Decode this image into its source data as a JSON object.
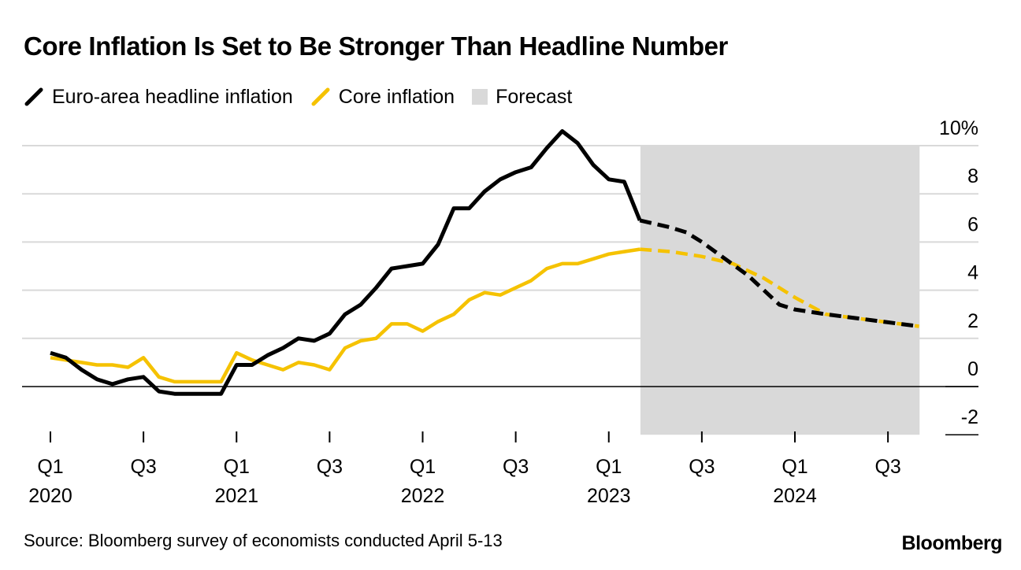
{
  "title": "Core Inflation Is Set to Be Stronger Than Headline Number",
  "legend": {
    "headline": "Euro-area headline inflation",
    "core": "Core inflation",
    "forecast": "Forecast"
  },
  "source": "Source: Bloomberg survey of economists conducted April 5-13",
  "brand": "Bloomberg",
  "colors": {
    "headline": "#000000",
    "core": "#f5c200",
    "forecast": "#d9d9d9",
    "grid": "#d9d9d9"
  },
  "chart_data": {
    "type": "line",
    "title": "Core Inflation Is Set to Be Stronger Than Headline Number",
    "xlabel": "",
    "ylabel": "",
    "ylim": [
      -2,
      10
    ],
    "xlim": [
      2020.0,
      2024.83
    ],
    "x_unit": "year",
    "y_ticks": [
      {
        "value": 10,
        "label": "10%"
      },
      {
        "value": 8,
        "label": "8"
      },
      {
        "value": 6,
        "label": "6"
      },
      {
        "value": 4,
        "label": "4"
      },
      {
        "value": 2,
        "label": "2"
      },
      {
        "value": 0,
        "label": "0"
      },
      {
        "value": -2,
        "label": "-2"
      }
    ],
    "x_ticks": [
      {
        "value": 2020.0,
        "label": "Q1",
        "sublabel": "2020"
      },
      {
        "value": 2020.5,
        "label": "Q3",
        "sublabel": ""
      },
      {
        "value": 2021.0,
        "label": "Q1",
        "sublabel": "2021"
      },
      {
        "value": 2021.5,
        "label": "Q3",
        "sublabel": ""
      },
      {
        "value": 2022.0,
        "label": "Q1",
        "sublabel": "2022"
      },
      {
        "value": 2022.5,
        "label": "Q3",
        "sublabel": ""
      },
      {
        "value": 2023.0,
        "label": "Q1",
        "sublabel": "2023"
      },
      {
        "value": 2023.5,
        "label": "Q3",
        "sublabel": ""
      },
      {
        "value": 2024.0,
        "label": "Q1",
        "sublabel": "2024"
      },
      {
        "value": 2024.5,
        "label": "Q3",
        "sublabel": ""
      }
    ],
    "forecast_range": [
      2023.17,
      2024.67
    ],
    "series": [
      {
        "name": "Euro-area headline inflation",
        "color": "#000000",
        "x": [
          2020.0,
          2020.083,
          2020.167,
          2020.25,
          2020.333,
          2020.417,
          2020.5,
          2020.583,
          2020.667,
          2020.75,
          2020.833,
          2020.917,
          2021.0,
          2021.083,
          2021.167,
          2021.25,
          2021.333,
          2021.417,
          2021.5,
          2021.583,
          2021.667,
          2021.75,
          2021.833,
          2021.917,
          2022.0,
          2022.083,
          2022.167,
          2022.25,
          2022.333,
          2022.417,
          2022.5,
          2022.583,
          2022.667,
          2022.75,
          2022.833,
          2022.917,
          2023.0,
          2023.083,
          2023.167
        ],
        "values": [
          1.4,
          1.2,
          0.7,
          0.3,
          0.1,
          0.3,
          0.4,
          -0.2,
          -0.3,
          -0.3,
          -0.3,
          -0.3,
          0.9,
          0.9,
          1.3,
          1.6,
          2.0,
          1.9,
          2.2,
          3.0,
          3.4,
          4.1,
          4.9,
          5.0,
          5.1,
          5.9,
          7.4,
          7.4,
          8.1,
          8.6,
          8.9,
          9.1,
          9.9,
          10.6,
          10.1,
          9.2,
          8.6,
          8.5,
          6.9
        ]
      },
      {
        "name": "Euro-area headline inflation (forecast)",
        "color": "#000000",
        "dashed": true,
        "x": [
          2023.167,
          2023.333,
          2023.417,
          2023.5,
          2023.75,
          2023.917,
          2024.0,
          2024.167,
          2024.667
        ],
        "values": [
          6.9,
          6.6,
          6.4,
          6.0,
          4.6,
          3.4,
          3.2,
          3.0,
          2.5
        ]
      },
      {
        "name": "Core inflation",
        "color": "#f5c200",
        "x": [
          2020.0,
          2020.083,
          2020.167,
          2020.25,
          2020.333,
          2020.417,
          2020.5,
          2020.583,
          2020.667,
          2020.75,
          2020.833,
          2020.917,
          2021.0,
          2021.083,
          2021.167,
          2021.25,
          2021.333,
          2021.417,
          2021.5,
          2021.583,
          2021.667,
          2021.75,
          2021.833,
          2021.917,
          2022.0,
          2022.083,
          2022.167,
          2022.25,
          2022.333,
          2022.417,
          2022.5,
          2022.583,
          2022.667,
          2022.75,
          2022.833,
          2022.917,
          2023.0,
          2023.083,
          2023.167
        ],
        "values": [
          1.2,
          1.1,
          1.0,
          0.9,
          0.9,
          0.8,
          1.2,
          0.4,
          0.2,
          0.2,
          0.2,
          0.2,
          1.4,
          1.1,
          0.9,
          0.7,
          1.0,
          0.9,
          0.7,
          1.6,
          1.9,
          2.0,
          2.6,
          2.6,
          2.3,
          2.7,
          3.0,
          3.6,
          3.9,
          3.8,
          4.1,
          4.4,
          4.9,
          5.1,
          5.1,
          5.3,
          5.5,
          5.6,
          5.7
        ]
      },
      {
        "name": "Core inflation (forecast)",
        "color": "#f5c200",
        "dashed": true,
        "x": [
          2023.167,
          2023.333,
          2023.5,
          2023.667,
          2023.833,
          2024.0,
          2024.167,
          2024.667
        ],
        "values": [
          5.7,
          5.6,
          5.4,
          5.1,
          4.5,
          3.7,
          3.0,
          2.5
        ]
      }
    ]
  }
}
